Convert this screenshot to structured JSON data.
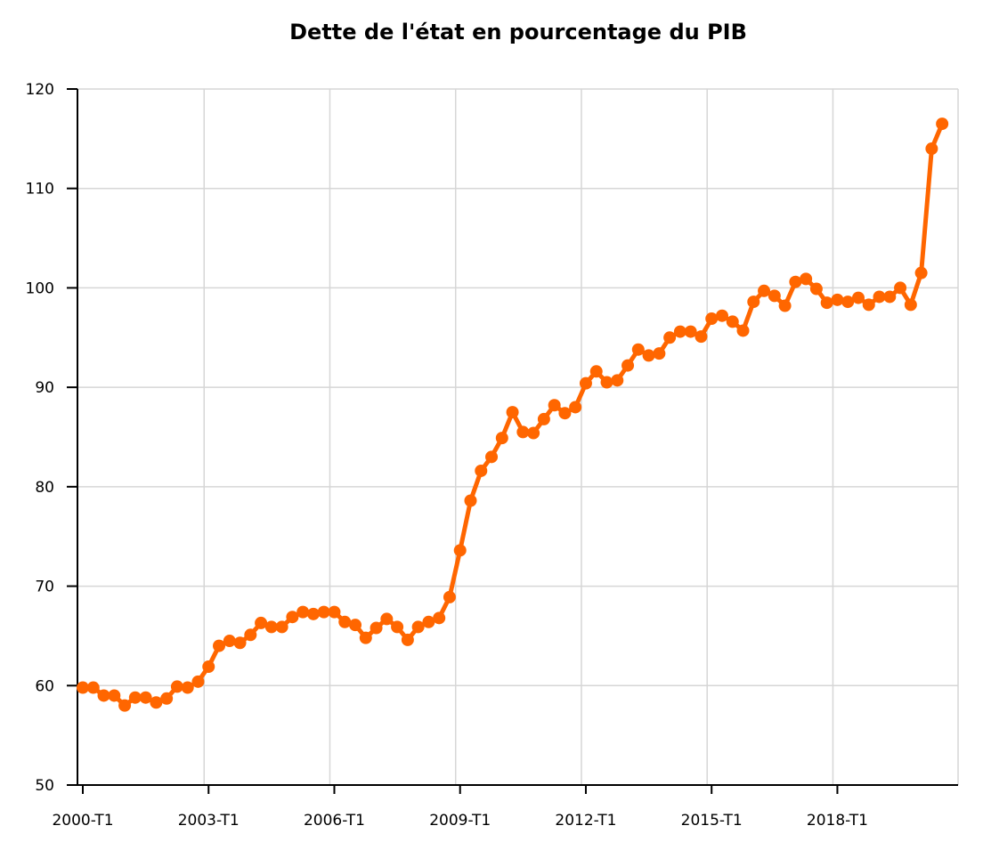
{
  "chart_data": {
    "type": "line",
    "title": "Dette de l'état en pourcentage du PIB",
    "xlabel": "",
    "ylabel": "",
    "ylim": [
      50,
      120
    ],
    "yticks": [
      50,
      60,
      70,
      80,
      90,
      100,
      110,
      120
    ],
    "xtick_labels": [
      "2000-T1",
      "2003-T1",
      "2006-T1",
      "2009-T1",
      "2012-T1",
      "2015-T1",
      "2018-T1"
    ],
    "grid": true,
    "legend": "none",
    "color": "#ff6600",
    "categories": [
      "2000-T1",
      "2000-T2",
      "2000-T3",
      "2000-T4",
      "2001-T1",
      "2001-T2",
      "2001-T3",
      "2001-T4",
      "2002-T1",
      "2002-T2",
      "2002-T3",
      "2002-T4",
      "2003-T1",
      "2003-T2",
      "2003-T3",
      "2003-T4",
      "2004-T1",
      "2004-T2",
      "2004-T3",
      "2004-T4",
      "2005-T1",
      "2005-T2",
      "2005-T3",
      "2005-T4",
      "2006-T1",
      "2006-T2",
      "2006-T3",
      "2006-T4",
      "2007-T1",
      "2007-T2",
      "2007-T3",
      "2007-T4",
      "2008-T1",
      "2008-T2",
      "2008-T3",
      "2008-T4",
      "2009-T1",
      "2009-T2",
      "2009-T3",
      "2009-T4",
      "2010-T1",
      "2010-T2",
      "2010-T3",
      "2010-T4",
      "2011-T1",
      "2011-T2",
      "2011-T3",
      "2011-T4",
      "2012-T1",
      "2012-T2",
      "2012-T3",
      "2012-T4",
      "2013-T1",
      "2013-T2",
      "2013-T3",
      "2013-T4",
      "2014-T1",
      "2014-T2",
      "2014-T3",
      "2014-T4",
      "2015-T1",
      "2015-T2",
      "2015-T3",
      "2015-T4",
      "2016-T1",
      "2016-T2",
      "2016-T3",
      "2016-T4",
      "2017-T1",
      "2017-T2",
      "2017-T3",
      "2017-T4",
      "2018-T1",
      "2018-T2",
      "2018-T3",
      "2018-T4",
      "2019-T1",
      "2019-T2",
      "2019-T3",
      "2019-T4",
      "2020-T1",
      "2020-T2",
      "2020-T3"
    ],
    "values": [
      59.8,
      59.8,
      59.0,
      59.0,
      58.0,
      58.8,
      58.8,
      58.3,
      58.7,
      59.9,
      59.8,
      60.4,
      61.9,
      64.0,
      64.5,
      64.3,
      65.1,
      66.3,
      65.9,
      65.9,
      66.9,
      67.4,
      67.2,
      67.4,
      67.4,
      66.4,
      66.1,
      64.8,
      65.8,
      66.7,
      65.9,
      64.6,
      65.9,
      66.4,
      66.8,
      68.9,
      73.6,
      78.6,
      81.6,
      83.0,
      84.9,
      87.5,
      85.5,
      85.4,
      86.8,
      88.2,
      87.4,
      88.0,
      90.4,
      91.6,
      90.5,
      90.7,
      92.2,
      93.8,
      93.2,
      93.4,
      95.0,
      95.6,
      95.6,
      95.1,
      96.9,
      97.2,
      96.6,
      95.7,
      98.6,
      99.7,
      99.2,
      98.2,
      100.6,
      100.9,
      99.9,
      98.5,
      98.8,
      98.6,
      99.0,
      98.3,
      99.1,
      99.1,
      100.0,
      98.3,
      101.5,
      114.0,
      116.5
    ]
  }
}
